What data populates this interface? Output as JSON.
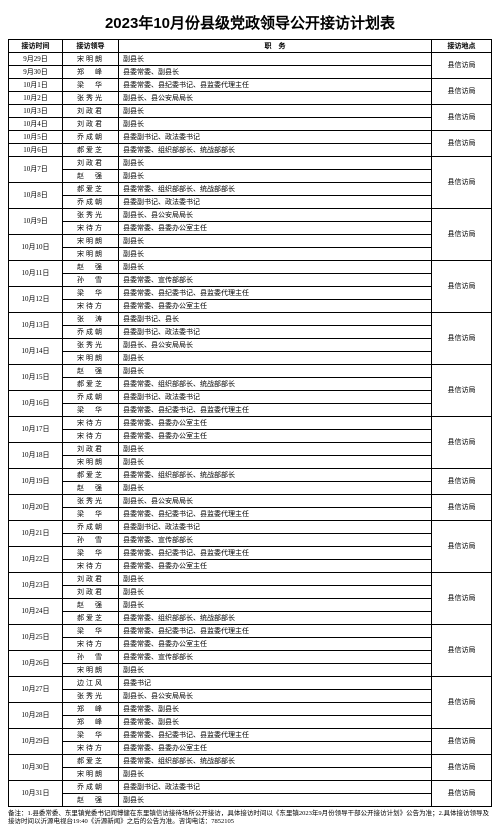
{
  "title": "2023年10月份县级党政领导公开接访计划表",
  "headers": {
    "date": "接访时间",
    "leader": "接访领导",
    "duty": "职　务",
    "loc": "接访地点"
  },
  "loc_default": "县信访局",
  "rows": [
    {
      "date": "9月29日",
      "leader": "宋明朗",
      "duty": "副县长",
      "locspan": 2
    },
    {
      "date": "9月30日",
      "leader": "郑　峰",
      "duty": "县委常委、副县长"
    },
    {
      "date": "10月1日",
      "leader": "梁　华",
      "duty": "县委常委、县纪委书记、县监委代理主任",
      "locspan": 2
    },
    {
      "date": "10月2日",
      "leader": "张秀光",
      "duty": "副县长、县公安局局长"
    },
    {
      "date": "10月3日",
      "leader": "刘政君",
      "duty": "副县长",
      "locspan": 2
    },
    {
      "date": "10月4日",
      "leader": "刘政君",
      "duty": "副县长"
    },
    {
      "date": "10月5日",
      "leader": "乔成朝",
      "duty": "县委副书记、政法委书记",
      "locspan": 2
    },
    {
      "date": "10月6日",
      "leader": "郝爱芝",
      "duty": "县委常委、组织部部长、统战部部长"
    },
    {
      "date": "10月7日",
      "datespan": 2,
      "leader": "刘政君",
      "duty": "副县长",
      "locspan": 4
    },
    {
      "leader": "赵　强",
      "duty": "副县长"
    },
    {
      "date": "10月8日",
      "datespan": 2,
      "leader": "郝爱芝",
      "duty": "县委常委、组织部部长、统战部部长"
    },
    {
      "leader": "乔成朝",
      "duty": "县委副书记、政法委书记"
    },
    {
      "date": "10月9日",
      "datespan": 2,
      "leader": "张秀光",
      "duty": "副县长、县公安局局长",
      "locspan": 4
    },
    {
      "leader": "宋待方",
      "duty": "县委常委、县委办公室主任"
    },
    {
      "date": "10月10日",
      "datespan": 2,
      "leader": "宋明朗",
      "duty": "副县长"
    },
    {
      "leader": "宋明朗",
      "duty": "副县长"
    },
    {
      "date": "10月11日",
      "datespan": 2,
      "leader": "赵　强",
      "duty": "副县长",
      "locspan": 4
    },
    {
      "leader": "孙　雪",
      "duty": "县委常委、宣传部部长"
    },
    {
      "date": "10月12日",
      "datespan": 2,
      "leader": "梁　华",
      "duty": "县委常委、县纪委书记、县监委代理主任"
    },
    {
      "leader": "宋待方",
      "duty": "县委常委、县委办公室主任"
    },
    {
      "date": "10月13日",
      "datespan": 2,
      "leader": "张　涛",
      "duty": "县委副书记、县长",
      "locspan": 4
    },
    {
      "leader": "乔成朝",
      "duty": "县委副书记、政法委书记"
    },
    {
      "date": "10月14日",
      "datespan": 2,
      "leader": "张秀光",
      "duty": "副县长、县公安局局长"
    },
    {
      "leader": "宋明朗",
      "duty": "副县长"
    },
    {
      "date": "10月15日",
      "datespan": 2,
      "leader": "赵　强",
      "duty": "副县长",
      "locspan": 4
    },
    {
      "leader": "郝爱芝",
      "duty": "县委常委、组织部部长、统战部部长"
    },
    {
      "date": "10月16日",
      "datespan": 2,
      "leader": "乔成朝",
      "duty": "县委副书记、政法委书记"
    },
    {
      "leader": "梁　华",
      "duty": "县委常委、县纪委书记、县监委代理主任"
    },
    {
      "date": "10月17日",
      "datespan": 2,
      "leader": "宋待方",
      "duty": "县委常委、县委办公室主任",
      "locspan": 4
    },
    {
      "leader": "宋待方",
      "duty": "县委常委、县委办公室主任"
    },
    {
      "date": "10月18日",
      "datespan": 2,
      "leader": "刘政君",
      "duty": "副县长"
    },
    {
      "leader": "宋明朗",
      "duty": "副县长"
    },
    {
      "date": "10月19日",
      "datespan": 2,
      "leader": "郝爱芝",
      "duty": "县委常委、组织部部长、统战部部长",
      "locspan": 2
    },
    {
      "leader": "赵　强",
      "duty": "副县长"
    },
    {
      "date": "10月20日",
      "datespan": 2,
      "leader": "张秀光",
      "duty": "副县长、县公安局局长",
      "locspan": 2
    },
    {
      "leader": "梁　华",
      "duty": "县委常委、县纪委书记、县监委代理主任"
    },
    {
      "date": "10月21日",
      "datespan": 2,
      "leader": "乔成朝",
      "duty": "县委副书记、政法委书记",
      "locspan": 4
    },
    {
      "leader": "孙　雪",
      "duty": "县委常委、宣传部部长"
    },
    {
      "date": "10月22日",
      "datespan": 2,
      "leader": "梁　华",
      "duty": "县委常委、县纪委书记、县监委代理主任"
    },
    {
      "leader": "宋待方",
      "duty": "县委常委、县委办公室主任"
    },
    {
      "date": "10月23日",
      "datespan": 2,
      "leader": "刘政君",
      "duty": "副县长",
      "locspan": 4
    },
    {
      "leader": "刘政君",
      "duty": "副县长"
    },
    {
      "date": "10月24日",
      "datespan": 2,
      "leader": "赵　强",
      "duty": "副县长"
    },
    {
      "leader": "郝爱芝",
      "duty": "县委常委、组织部部长、统战部部长"
    },
    {
      "date": "10月25日",
      "datespan": 2,
      "leader": "梁　华",
      "duty": "县委常委、县纪委书记、县监委代理主任",
      "locspan": 4
    },
    {
      "leader": "宋待方",
      "duty": "县委常委、县委办公室主任"
    },
    {
      "date": "10月26日",
      "datespan": 2,
      "leader": "孙　雪",
      "duty": "县委常委、宣传部部长"
    },
    {
      "leader": "宋明朗",
      "duty": "副县长"
    },
    {
      "date": "10月27日",
      "datespan": 2,
      "leader": "边江风",
      "duty": "县委书记",
      "locspan": 4
    },
    {
      "leader": "张秀光",
      "duty": "副县长、县公安局局长"
    },
    {
      "date": "10月28日",
      "datespan": 2,
      "leader": "郑　峰",
      "duty": "县委常委、副县长"
    },
    {
      "leader": "郑　峰",
      "duty": "县委常委、副县长"
    },
    {
      "date": "10月29日",
      "datespan": 2,
      "leader": "梁　华",
      "duty": "县委常委、县纪委书记、县监委代理主任",
      "locspan": 2
    },
    {
      "leader": "宋待方",
      "duty": "县委常委、县委办公室主任"
    },
    {
      "date": "10月30日",
      "datespan": 2,
      "leader": "郝爱芝",
      "duty": "县委常委、组织部部长、统战部部长",
      "locspan": 2
    },
    {
      "leader": "宋明朗",
      "duty": "副县长"
    },
    {
      "date": "10月31日",
      "datespan": 2,
      "leader": "乔成朝",
      "duty": "县委副书记、政法委书记",
      "locspan": 2
    },
    {
      "leader": "赵　强",
      "duty": "副县长"
    }
  ],
  "footnote": "备注：1.县委常委、东里镇党委书记阎博健在东里镇信访接待场所公开接访，具体接访时间以《东里镇2023年9月份领导干部公开接访计划》公告为准；2.具体接访领导及接访时间以沂源电视台19:40《沂源新闻》之后的公告为准。咨询电话：7852105"
}
